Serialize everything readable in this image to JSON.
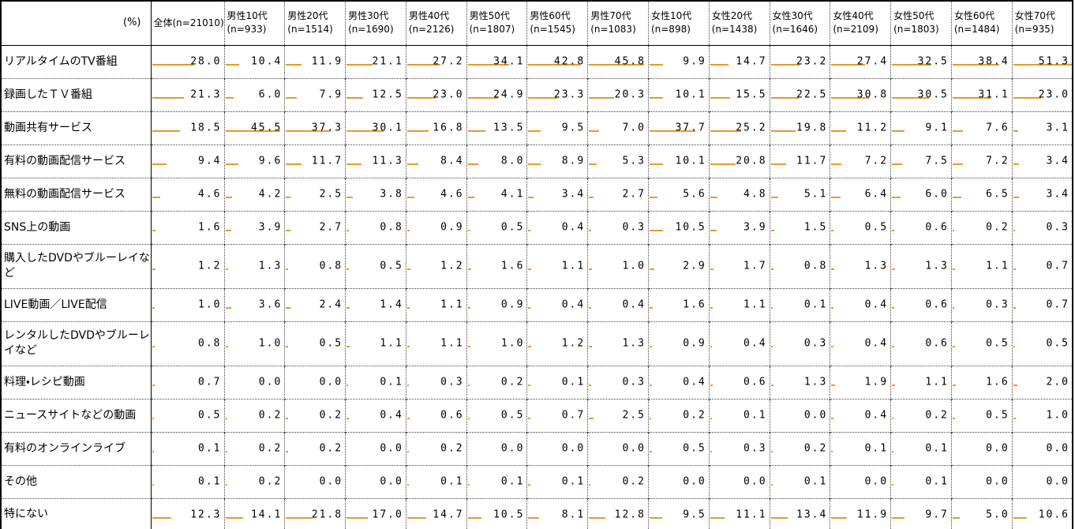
{
  "colors": {
    "bar_gradient_start": "#F7A437",
    "bar_gradient_end": "#FFF3DE",
    "bar_border": "#E9992F",
    "grid_dotted": "#444444",
    "grid_solid": "#000000"
  },
  "chart_data": {
    "type": "table",
    "unit": "%",
    "corner_label": "(%)",
    "layout_hint": "horizontal orange gradient bars embedded in each cell, scaled relative to the maximum value in the table; value text right-aligned in cell",
    "categories": [
      "全体",
      "男性10代",
      "男性20代",
      "男性30代",
      "男性40代",
      "男性50代",
      "男性60代",
      "男性70代",
      "女性10代",
      "女性20代",
      "女性30代",
      "女性40代",
      "女性50代",
      "女性60代",
      "女性70代"
    ],
    "sample_sizes": [
      21010,
      933,
      1514,
      1690,
      2126,
      1807,
      1545,
      1083,
      898,
      1438,
      1646,
      2109,
      1803,
      1484,
      935
    ],
    "bar_scale_max": 51.3,
    "series": [
      {
        "name": "リアルタイムのTV番組",
        "values": [
          28.0,
          10.4,
          11.9,
          21.1,
          27.2,
          34.1,
          42.8,
          45.8,
          9.9,
          14.7,
          23.2,
          27.4,
          32.5,
          38.4,
          51.3
        ]
      },
      {
        "name": "録画したＴＶ番組",
        "values": [
          21.3,
          6.0,
          7.9,
          12.5,
          23.0,
          24.9,
          23.3,
          20.3,
          10.1,
          15.5,
          22.5,
          30.8,
          30.5,
          31.1,
          23.0
        ]
      },
      {
        "name": "動画共有サービス",
        "values": [
          18.5,
          45.5,
          37.3,
          30.1,
          16.8,
          13.5,
          9.5,
          7.0,
          37.7,
          25.2,
          19.8,
          11.2,
          9.1,
          7.6,
          3.1
        ]
      },
      {
        "name": "有料の動画配信サービス",
        "values": [
          9.4,
          9.6,
          11.7,
          11.3,
          8.4,
          8.0,
          8.9,
          5.3,
          10.1,
          20.8,
          11.7,
          7.2,
          7.5,
          7.2,
          3.4
        ]
      },
      {
        "name": "無料の動画配信サービス",
        "values": [
          4.6,
          4.2,
          2.5,
          3.8,
          4.6,
          4.1,
          3.4,
          2.7,
          5.6,
          4.8,
          5.1,
          6.4,
          6.0,
          6.5,
          3.4
        ]
      },
      {
        "name": "SNS上の動画",
        "values": [
          1.6,
          3.9,
          2.7,
          0.8,
          0.9,
          0.5,
          0.4,
          0.3,
          10.5,
          3.9,
          1.5,
          0.5,
          0.6,
          0.2,
          0.3
        ]
      },
      {
        "name": "購入したDVDやブルーレイなど",
        "name_lines": "購入したDVDやブルーレイな\nど",
        "values": [
          1.2,
          1.3,
          0.8,
          0.5,
          1.2,
          1.6,
          1.1,
          1.0,
          2.9,
          1.7,
          0.8,
          1.3,
          1.3,
          1.1,
          0.7
        ]
      },
      {
        "name": "LIVE動画／LIVE配信",
        "values": [
          1.0,
          3.6,
          2.4,
          1.4,
          1.1,
          0.9,
          0.4,
          0.4,
          1.6,
          1.1,
          0.1,
          0.4,
          0.6,
          0.3,
          0.7
        ]
      },
      {
        "name": "レンタルしたDVDやブルーレイなど",
        "name_lines": "レンタルしたDVDやブルーレ\nイなど",
        "values": [
          0.8,
          1.0,
          0.5,
          1.1,
          1.1,
          1.0,
          1.2,
          1.3,
          0.9,
          0.4,
          0.3,
          0.4,
          0.6,
          0.5,
          0.5
        ]
      },
      {
        "name": "料理・レシピ動画",
        "values": [
          0.7,
          0.0,
          0.0,
          0.1,
          0.3,
          0.2,
          0.1,
          0.3,
          0.4,
          0.6,
          1.3,
          1.9,
          1.1,
          1.6,
          2.0
        ]
      },
      {
        "name": "ニュースサイトなどの動画",
        "values": [
          0.5,
          0.2,
          0.2,
          0.4,
          0.6,
          0.5,
          0.7,
          2.5,
          0.2,
          0.1,
          0.0,
          0.4,
          0.2,
          0.5,
          1.0
        ]
      },
      {
        "name": "有料のオンラインライブ",
        "values": [
          0.1,
          0.2,
          0.2,
          0.0,
          0.2,
          0.0,
          0.0,
          0.0,
          0.5,
          0.3,
          0.2,
          0.1,
          0.1,
          0.0,
          0.0
        ]
      },
      {
        "name": "その他",
        "values": [
          0.1,
          0.2,
          0.0,
          0.0,
          0.1,
          0.1,
          0.1,
          0.2,
          0.0,
          0.0,
          0.1,
          0.0,
          0.1,
          0.0,
          0.0
        ]
      },
      {
        "name": "特にない",
        "values": [
          12.3,
          14.1,
          21.8,
          17.0,
          14.7,
          10.5,
          8.1,
          12.8,
          9.5,
          11.1,
          13.4,
          11.9,
          9.7,
          5.0,
          10.6
        ]
      }
    ]
  }
}
